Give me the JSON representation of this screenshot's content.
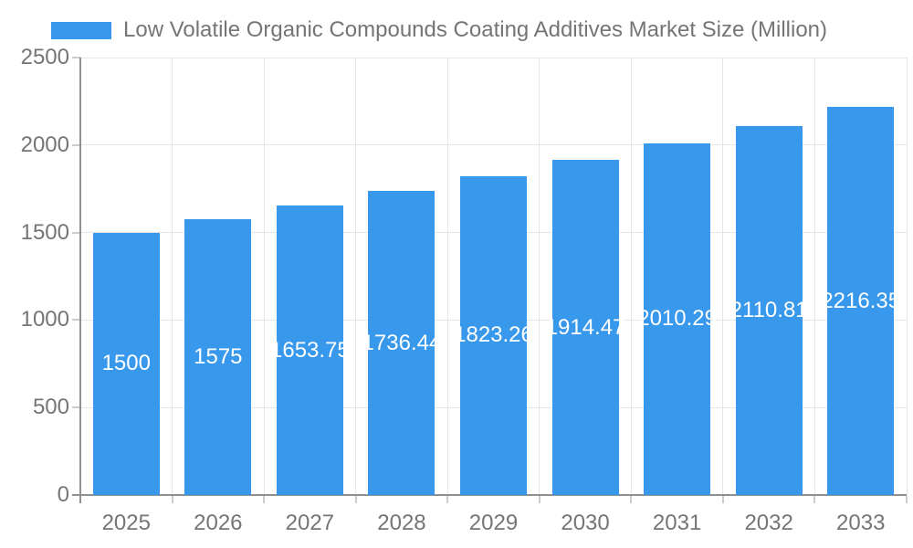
{
  "chart_data": {
    "type": "bar",
    "title": "Low Volatile Organic Compounds Coating Additives Market Size (Million)",
    "legend_position": "top-left",
    "categories": [
      "2025",
      "2026",
      "2027",
      "2028",
      "2029",
      "2030",
      "2031",
      "2032",
      "2033"
    ],
    "values": [
      1500,
      1575,
      1653.75,
      1736.44,
      1823.26,
      1914.47,
      2010.29,
      2110.81,
      2216.35
    ],
    "value_labels": [
      "1500",
      "1575",
      "1653.75",
      "1736.44",
      "1823.26",
      "1914.47",
      "2010.29",
      "2110.81",
      "2216.35"
    ],
    "xlabel": "",
    "ylabel": "",
    "y_ticks": [
      0,
      500,
      1000,
      1500,
      2000,
      2500
    ],
    "ylim": [
      0,
      2500
    ],
    "grid": true,
    "colors": {
      "bar": "#3898EC",
      "grid": "#e6e6e6",
      "axis": "#8f8f8f",
      "tick": "#cccccc",
      "text": "#757575",
      "value_text": "#ffffff",
      "background": "#ffffff"
    }
  }
}
